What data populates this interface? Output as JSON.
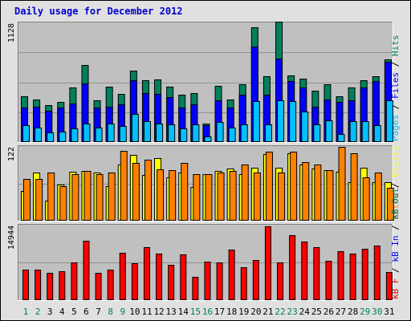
{
  "title": "Daily usage for December 2012",
  "colors": {
    "background": "#e0e0e0",
    "plot_bg": "#c0c0c0",
    "title": "#0000cc",
    "hits": "#00805c",
    "files": "#0000ff",
    "pages": "#00c0ff",
    "visits": "#ffff00",
    "sites": "#ff8000",
    "kb_out": "#00805c",
    "kb_in": "#0000ff",
    "kb_f": "#ff0000",
    "weekday_label": "#000000",
    "weekend_label": "#00805c"
  },
  "chart_data": [
    {
      "type": "bar",
      "panel": "hits-files-pages",
      "y_axis_label": "1128",
      "ylim": [
        0,
        1128
      ],
      "legend": [
        {
          "text": "Pages",
          "color_key": "pages"
        },
        {
          "text": " / ",
          "color_key": "weekday_label"
        },
        {
          "text": "Files",
          "color_key": "files"
        },
        {
          "text": " / ",
          "color_key": "weekday_label"
        },
        {
          "text": "Hits",
          "color_key": "hits"
        }
      ],
      "series": [
        {
          "name": "Hits",
          "color_key": "hits",
          "values": [
            440,
            410,
            350,
            380,
            520,
            740,
            400,
            530,
            460,
            680,
            590,
            600,
            530,
            450,
            470,
            180,
            540,
            410,
            550,
            1100,
            630,
            1150,
            640,
            610,
            490,
            550,
            440,
            520,
            590,
            630,
            790
          ]
        },
        {
          "name": "Files",
          "color_key": "files",
          "values": [
            330,
            340,
            300,
            330,
            370,
            560,
            330,
            340,
            360,
            590,
            470,
            460,
            430,
            330,
            360,
            160,
            400,
            330,
            450,
            910,
            450,
            800,
            580,
            520,
            340,
            410,
            380,
            400,
            520,
            580,
            770
          ]
        },
        {
          "name": "Pages",
          "color_key": "pages",
          "values": [
            160,
            140,
            90,
            100,
            130,
            180,
            140,
            180,
            150,
            270,
            200,
            180,
            170,
            130,
            170,
            50,
            190,
            140,
            170,
            390,
            170,
            400,
            390,
            290,
            170,
            210,
            80,
            200,
            200,
            160,
            400
          ]
        }
      ]
    },
    {
      "type": "bar",
      "panel": "visits-sites",
      "y_axis_label": "122",
      "ylim": [
        0,
        122
      ],
      "legend": [
        {
          "text": "Sites",
          "color_key": "sites"
        },
        {
          "text": " / ",
          "color_key": "weekday_label"
        },
        {
          "text": "Visits",
          "color_key": "visits"
        }
      ],
      "series": [
        {
          "name": "Visits",
          "color_key": "visits",
          "values": [
            50,
            80,
            34,
            60,
            82,
            83,
            80,
            58,
            94,
            110,
            76,
            104,
            73,
            80,
            56,
            78,
            83,
            87,
            78,
            88,
            111,
            88,
            113,
            94,
            87,
            85,
            82,
            65,
            88,
            65,
            64
          ]
        },
        {
          "name": "Sites",
          "color_key": "sites",
          "values": [
            70,
            70,
            80,
            58,
            78,
            83,
            78,
            80,
            117,
            96,
            102,
            86,
            84,
            96,
            78,
            78,
            81,
            83,
            94,
            80,
            115,
            80,
            115,
            98,
            94,
            84,
            124,
            113,
            73,
            80,
            55
          ]
        }
      ]
    },
    {
      "type": "bar",
      "panel": "kbytes",
      "y_axis_label": "14944",
      "ylim": [
        0,
        14944
      ],
      "legend": [
        {
          "text": "kB F",
          "color_key": "kb_f"
        },
        {
          "text": " / ",
          "color_key": "weekday_label"
        },
        {
          "text": "kB In",
          "color_key": "kb_in"
        },
        {
          "text": " / ",
          "color_key": "weekday_label"
        },
        {
          "text": "kB Out",
          "color_key": "kb_out"
        }
      ],
      "series": [
        {
          "name": "kB F",
          "color_key": "kb_f",
          "values": [
            6200,
            6200,
            5600,
            5900,
            7600,
            12100,
            5600,
            6100,
            9600,
            7500,
            10800,
            9500,
            7200,
            9200,
            4700,
            7800,
            7600,
            10300,
            6600,
            8100,
            14944,
            7600,
            13200,
            11800,
            10700,
            7900,
            9900,
            9400,
            10400,
            11100,
            5700
          ]
        }
      ]
    }
  ],
  "x_axis": {
    "labels": [
      "1",
      "2",
      "3",
      "4",
      "5",
      "6",
      "7",
      "8",
      "9",
      "10",
      "11",
      "12",
      "13",
      "14",
      "15",
      "16",
      "17",
      "18",
      "19",
      "20",
      "21",
      "22",
      "23",
      "24",
      "25",
      "26",
      "27",
      "28",
      "29",
      "30",
      "31"
    ],
    "weekend_days": [
      1,
      2,
      8,
      9,
      15,
      16,
      22,
      23,
      29,
      30
    ]
  }
}
